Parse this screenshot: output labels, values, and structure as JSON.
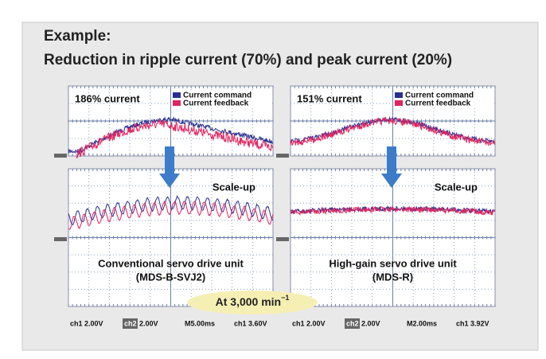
{
  "header": {
    "title_line1": "Example:",
    "title_line2": "Reduction in ripple current (70%) and peak current (20%)"
  },
  "panels": [
    {
      "label": "186% current",
      "legend": [
        "Current command",
        "Current feedback"
      ],
      "zoom_label": "Scale-up",
      "caption_line1": "Conventional servo drive unit",
      "caption_line2": "(MDS-B-SVJ2)",
      "footer": {
        "ch1": "ch1 2.00V",
        "ch2_tag": "ch2",
        "ch2": "2.00V",
        "time": "M5.00ms",
        "trigger": "ch1 3.60V"
      }
    },
    {
      "label": "151% current",
      "legend": [
        "Current command",
        "Current feedback"
      ],
      "zoom_label": "Scale-up",
      "caption_line1": "High-gain servo drive unit",
      "caption_line2": "(MDS-R)",
      "footer": {
        "ch1": "ch1 2.00V",
        "ch2_tag": "ch2",
        "ch2": "2.00V",
        "time": "M2.00ms",
        "trigger": "ch1 3.92V"
      }
    }
  ],
  "badge": {
    "text": "At 3,000 min",
    "superscript": "−1"
  }
}
